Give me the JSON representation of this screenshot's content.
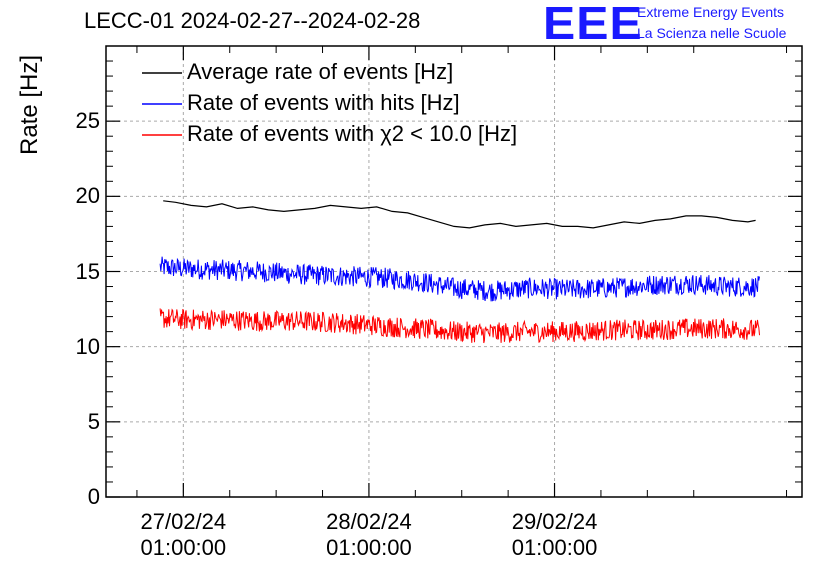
{
  "title": "LECC-01 2024-02-27--2024-02-28",
  "logo": {
    "mark": "EEE",
    "line1": "Extreme Energy Events",
    "line2": "La Scienza nelle Scuole",
    "color": "#1a1aff"
  },
  "chart_data": {
    "type": "line",
    "title": "LECC-01 2024-02-27--2024-02-28",
    "ylabel": "Rate [Hz]",
    "ylim": [
      0,
      30
    ],
    "yticks": [
      "0",
      "5",
      "10",
      "15",
      "20",
      "25"
    ],
    "xlim_hours": [
      -10.0,
      80.0
    ],
    "xticks": [
      {
        "date": "27/02/24",
        "time": "01:00:00"
      },
      {
        "date": "28/02/24",
        "time": "01:00:00"
      },
      {
        "date": "29/02/24",
        "time": "01:00:00"
      }
    ],
    "grid": true,
    "legend_position": "top-left",
    "series": [
      {
        "name": "Average rate of events [Hz]",
        "color": "#000000",
        "x_hours": [
          -2.6,
          -1,
          1,
          3,
          5,
          7,
          9,
          11,
          13,
          15,
          17,
          19,
          21,
          23,
          25,
          27,
          29,
          31,
          33,
          35,
          37,
          39,
          41,
          43,
          45,
          47,
          49,
          51,
          53,
          55,
          57,
          59,
          61,
          63,
          65,
          67,
          69,
          71,
          73,
          74.0
        ],
        "values": [
          19.7,
          19.6,
          19.4,
          19.3,
          19.5,
          19.2,
          19.3,
          19.1,
          19.0,
          19.1,
          19.2,
          19.4,
          19.3,
          19.2,
          19.3,
          19.0,
          18.9,
          18.6,
          18.3,
          18.0,
          17.9,
          18.1,
          18.2,
          18.0,
          18.1,
          18.2,
          18.0,
          18.0,
          17.9,
          18.1,
          18.3,
          18.2,
          18.4,
          18.5,
          18.7,
          18.7,
          18.6,
          18.4,
          18.3,
          18.4
        ]
      },
      {
        "name": "Rate of events with hits [Hz]",
        "color": "#0000ff",
        "x_hours": [
          -3,
          0,
          5,
          10,
          15,
          20,
          25,
          30,
          35,
          40,
          45,
          50,
          55,
          60,
          65,
          70,
          74.5
        ],
        "values": [
          15.3,
          15.2,
          15.1,
          15.0,
          14.8,
          14.7,
          14.6,
          14.4,
          13.9,
          13.7,
          13.9,
          13.8,
          13.9,
          14.1,
          14.2,
          14.0,
          14.0
        ]
      },
      {
        "name": "Rate of events with χ2 < 10.0 [Hz]",
        "color": "#ff0000",
        "x_hours": [
          -3,
          0,
          5,
          10,
          15,
          20,
          25,
          30,
          35,
          40,
          45,
          50,
          55,
          60,
          65,
          70,
          74.5
        ],
        "values": [
          11.9,
          11.8,
          11.8,
          11.7,
          11.7,
          11.6,
          11.4,
          11.2,
          11.0,
          10.9,
          11.0,
          11.0,
          11.1,
          11.1,
          11.2,
          11.2,
          11.1
        ]
      }
    ]
  }
}
